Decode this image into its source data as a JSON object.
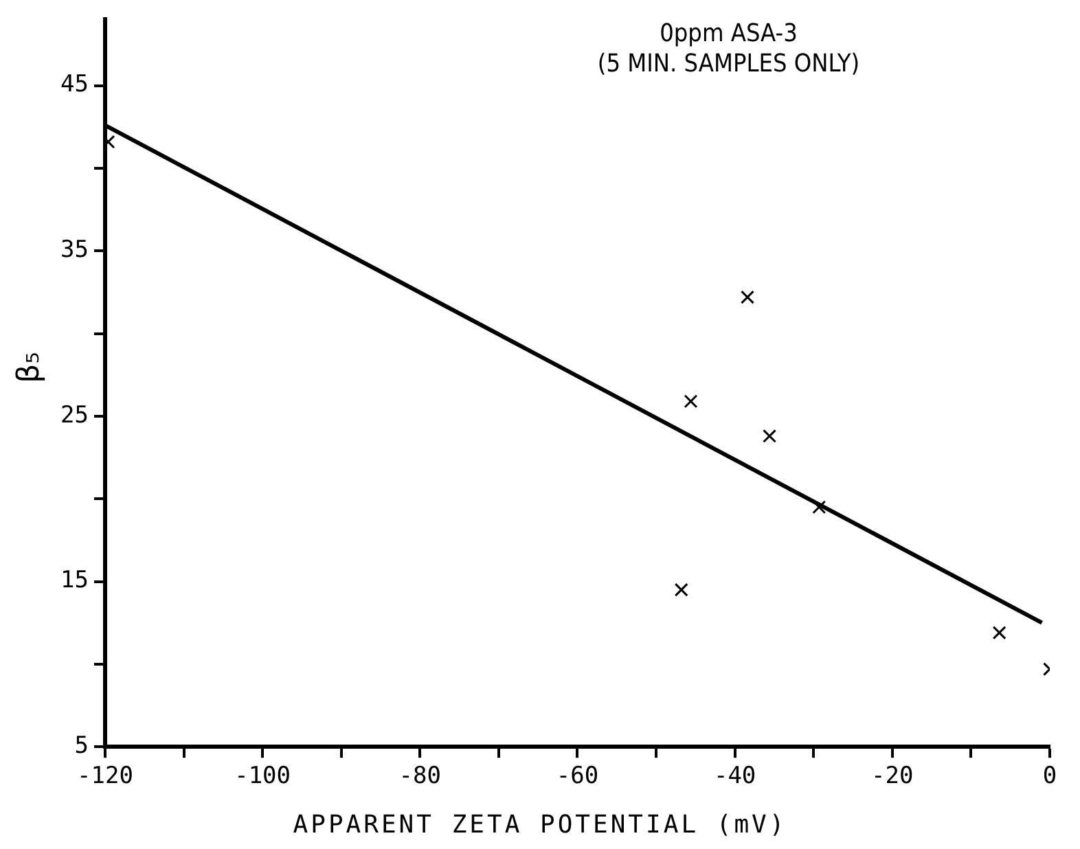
{
  "chart_data": {
    "type": "scatter",
    "title": [
      "0ppm ASA-3",
      "(5 MIN. SAMPLES ONLY)"
    ],
    "xlabel": "APPARENT ZETA POTENTIAL (mV)",
    "ylabel": "β₅",
    "series": [
      {
        "type": "scatter",
        "color": "#000000",
        "marker": "cross",
        "x": [
          -119.6,
          -38.4,
          -45.6,
          -35.6,
          -29.3,
          -46.8,
          -6.4,
          0
        ],
        "values": [
          41.6,
          32.2,
          25.9,
          23.8,
          19.5,
          14.5,
          11.9,
          9.7
        ]
      },
      {
        "type": "line",
        "color": "#000000",
        "marker": "none",
        "line_style": "solid",
        "x": [
          -120,
          -1
        ],
        "values": [
          42.6,
          12.5
        ]
      }
    ],
    "xlim": [
      -120,
      0
    ],
    "xticks": [
      -120,
      {
        "value": -110,
        "label": null
      },
      -100,
      {
        "value": -90,
        "label": null
      },
      -80,
      {
        "value": -70,
        "label": null
      },
      -60,
      {
        "value": -50,
        "label": null
      },
      -40,
      {
        "value": -30,
        "label": null
      },
      -20,
      {
        "value": -10,
        "label": null
      },
      0
    ],
    "ylim": [
      5,
      49
    ],
    "yticks": [
      5,
      {
        "value": 10,
        "label": null
      },
      15,
      {
        "value": 20,
        "label": null
      },
      25,
      {
        "value": 30,
        "label": null
      },
      35,
      {
        "value": 40,
        "label": null
      },
      45
    ],
    "grid": false,
    "legend": false
  }
}
